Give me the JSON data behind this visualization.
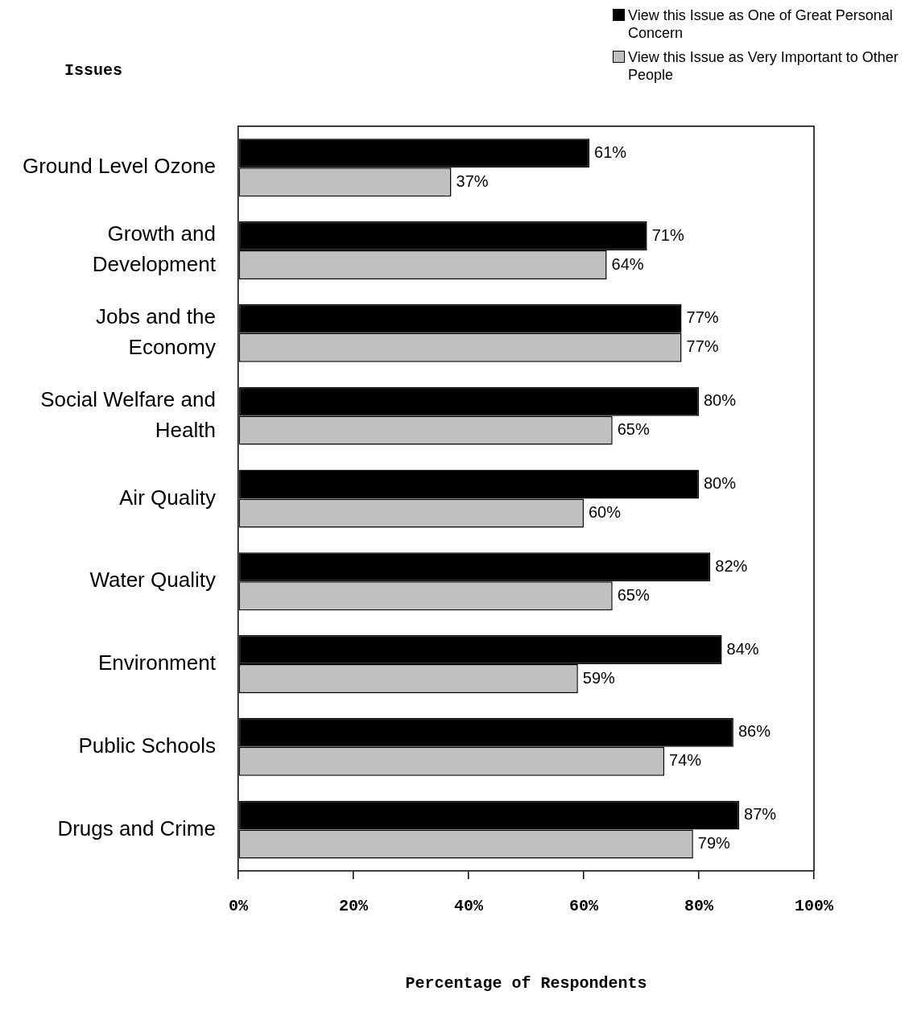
{
  "chart_data": {
    "type": "bar",
    "orientation": "horizontal",
    "ylabel": "Issues",
    "xlabel": "Percentage of Respondents",
    "categories": [
      "Ground Level Ozone",
      "Growth and Development",
      "Jobs and the Economy",
      "Social Welfare and Health",
      "Air Quality",
      "Water Quality",
      "Environment",
      "Public Schools",
      "Drugs and Crime"
    ],
    "series": [
      {
        "name": "View this Issue as One of Great Personal Concern",
        "color": "#000000",
        "values": [
          61,
          71,
          77,
          80,
          80,
          82,
          84,
          86,
          87
        ],
        "value_labels": [
          "61%",
          "71%",
          "77%",
          "80%",
          "80%",
          "82%",
          "84%",
          "86%",
          "87%"
        ]
      },
      {
        "name": "View this Issue as Very Important to Other People",
        "color": "#c0c0c0",
        "values": [
          37,
          64,
          77,
          65,
          60,
          65,
          59,
          74,
          79
        ],
        "value_labels": [
          "37%",
          "64%",
          "77%",
          "65%",
          "60%",
          "65%",
          "59%",
          "74%",
          "79%"
        ]
      }
    ],
    "xlim": [
      0,
      100
    ],
    "xticks": [
      {
        "value": 0,
        "label": "0%"
      },
      {
        "value": 20,
        "label": "20%"
      },
      {
        "value": 40,
        "label": "40%"
      },
      {
        "value": 60,
        "label": "60%"
      },
      {
        "value": 80,
        "label": "80%"
      },
      {
        "value": 100,
        "label": "100%"
      }
    ],
    "legend": "top right"
  }
}
